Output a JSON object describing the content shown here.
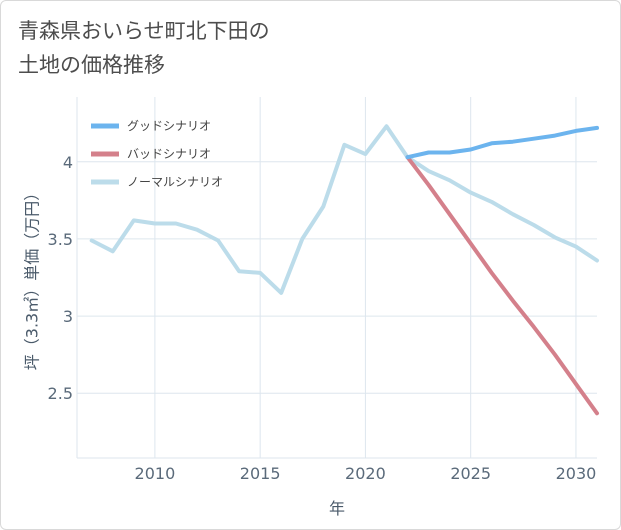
{
  "title_lines": [
    "青森県おいらせ町北下田の",
    "土地の価格推移"
  ],
  "chart_data": {
    "type": "line",
    "xlabel": "年",
    "ylabel": "坪（3.3㎡）単価（万円）",
    "xlim": [
      2006.3,
      2031
    ],
    "ylim": [
      2.08,
      4.42
    ],
    "xticks": [
      2010,
      2015,
      2020,
      2025,
      2030
    ],
    "yticks": [
      2.5,
      3,
      3.5,
      4
    ],
    "ytick_labels": [
      "2.5",
      "3",
      "3.5",
      "4"
    ],
    "grid": true,
    "legend_position": "top-left",
    "series": [
      {
        "name": "グッドシナリオ",
        "color": "#6cb4ee",
        "x": [
          2022,
          2023,
          2024,
          2025,
          2026,
          2027,
          2028,
          2029,
          2030,
          2031
        ],
        "y": [
          4.03,
          4.06,
          4.06,
          4.08,
          4.12,
          4.13,
          4.15,
          4.17,
          4.2,
          4.22
        ]
      },
      {
        "name": "バッドシナリオ",
        "color": "#d4808b",
        "x": [
          2022,
          2023,
          2024,
          2025,
          2026,
          2027,
          2028,
          2029,
          2030,
          2031
        ],
        "y": [
          4.03,
          3.85,
          3.66,
          3.47,
          3.28,
          3.1,
          2.93,
          2.75,
          2.56,
          2.37
        ]
      },
      {
        "name": "ノーマルシナリオ",
        "color": "#bcdcea",
        "x": [
          2007,
          2008,
          2009,
          2010,
          2011,
          2012,
          2013,
          2014,
          2015,
          2016,
          2017,
          2018,
          2019,
          2020,
          2021,
          2022,
          2023,
          2024,
          2025,
          2026,
          2027,
          2028,
          2029,
          2030,
          2031
        ],
        "y": [
          3.49,
          3.42,
          3.62,
          3.6,
          3.6,
          3.56,
          3.49,
          3.29,
          3.28,
          3.15,
          3.5,
          3.71,
          4.11,
          4.05,
          4.23,
          4.03,
          3.94,
          3.88,
          3.8,
          3.74,
          3.66,
          3.59,
          3.51,
          3.45,
          3.36
        ]
      }
    ]
  }
}
